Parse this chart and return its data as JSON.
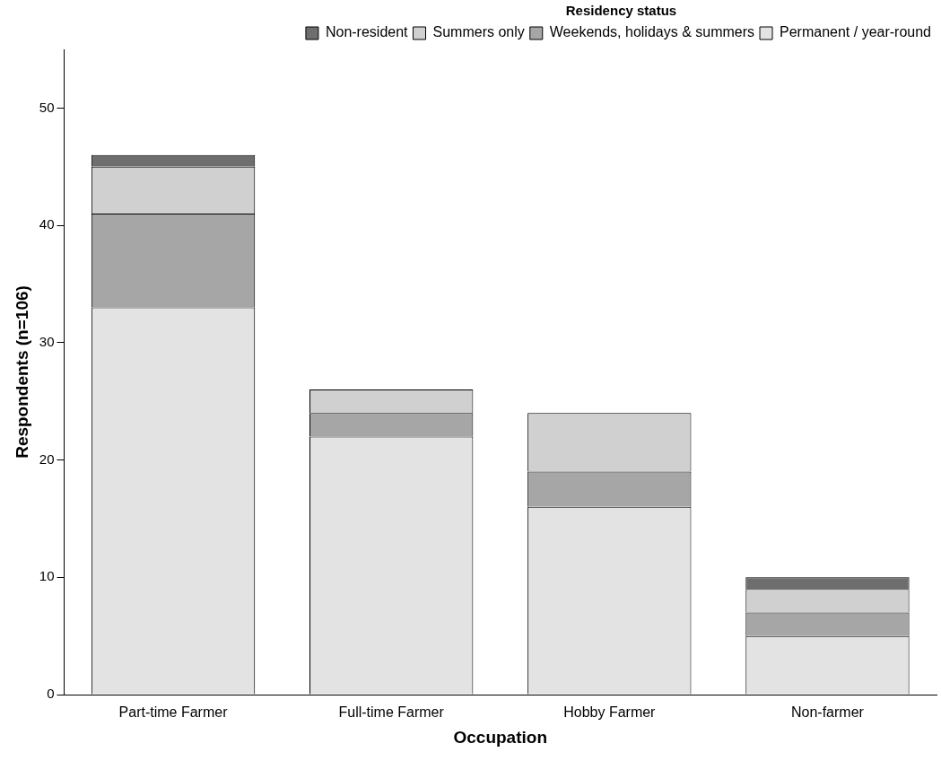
{
  "chart_data": {
    "type": "bar",
    "stacked": true,
    "xlabel": "Occupation",
    "ylabel": "Respondents (n=106)",
    "legend_title": "Residency status",
    "legend": "top right",
    "grid": false,
    "categories": [
      "Part-time Farmer",
      "Full-time Farmer",
      "Hobby Farmer",
      "Non-farmer"
    ],
    "ylim": [
      0,
      55
    ],
    "yticks": [
      0,
      10,
      20,
      30,
      40,
      50
    ],
    "series": [
      {
        "name": "Permanent / year-round",
        "color": "#e3e3e3",
        "values": [
          33,
          22,
          16,
          5
        ]
      },
      {
        "name": "Weekends, holidays & summers",
        "color": "#a6a6a6",
        "values": [
          8,
          2,
          3,
          2
        ]
      },
      {
        "name": "Summers only",
        "color": "#d0d0d0",
        "values": [
          4,
          2,
          5,
          2
        ]
      },
      {
        "name": "Non-resident",
        "color": "#6e6e6e",
        "values": [
          1,
          0,
          0,
          1
        ]
      }
    ]
  }
}
